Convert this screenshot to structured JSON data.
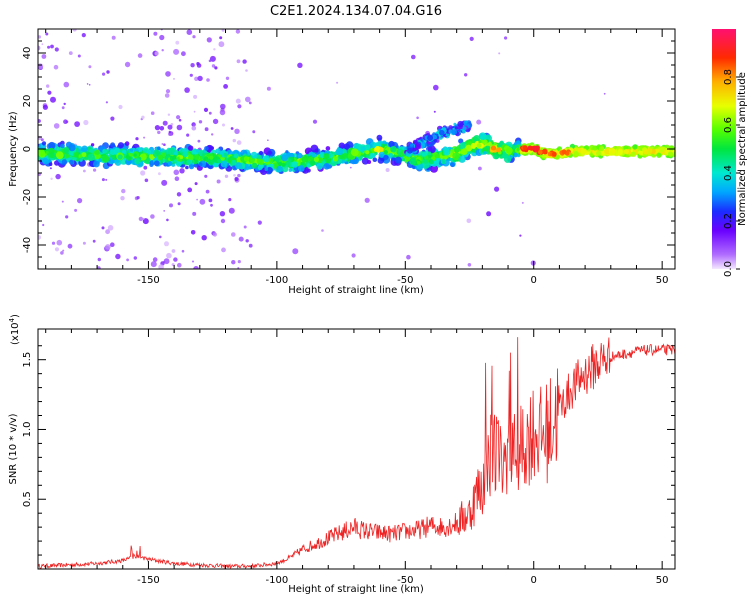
{
  "title": "C2E1.2024.134.07.04.G16",
  "colorbar": {
    "label": "Normalized spectral amplitude",
    "ticks": [
      "0.0",
      "0.2",
      "0.4",
      "0.6",
      "0.8"
    ]
  },
  "chart_data": [
    {
      "type": "heatmap",
      "xlabel": "Height of straight line (km)",
      "ylabel": "Frequency (Hz)",
      "xlim": [
        -193,
        55
      ],
      "ylim": [
        -50,
        50
      ],
      "xticks": [
        "-150",
        "-100",
        "-50",
        "0",
        "50"
      ],
      "yticks": [
        "-40",
        "-20",
        "0",
        "20",
        "40"
      ],
      "zlim": [
        0,
        1
      ],
      "ridge": {
        "x": [
          -193,
          -150,
          -120,
          -100,
          -80,
          -70,
          -60,
          -52,
          -45,
          -40,
          -30,
          -25,
          -20,
          -15,
          -10,
          -5,
          0,
          5,
          10,
          15,
          20,
          30,
          40,
          55
        ],
        "y": [
          -2,
          -3,
          -4,
          -6,
          -4,
          -2,
          0,
          -2,
          -5,
          -4,
          -2,
          1,
          2,
          0,
          -1,
          0,
          0,
          -2,
          -2,
          -1,
          -1,
          -1,
          -1,
          -1
        ]
      },
      "branch": {
        "x": [
          -50,
          -45,
          -40,
          -35,
          -30,
          -25
        ],
        "y": [
          -1,
          2,
          4,
          7,
          8,
          10
        ]
      }
    },
    {
      "type": "line",
      "xlabel": "Height of straight line (km)",
      "ylabel": "SNR (10 * v/v)",
      "yexponent": "(x10",
      "yexponent_power": "4",
      "yexponent_close": ")",
      "xlim": [
        -193,
        55
      ],
      "ylim": [
        0,
        1.72
      ],
      "xticks": [
        "-150",
        "-100",
        "-50",
        "0",
        "50"
      ],
      "yticks": [
        "0.5",
        "1.0",
        "1.5"
      ],
      "series": [
        {
          "color": "#ee2222",
          "x": [
            -193,
            -180,
            -170,
            -160,
            -155,
            -150,
            -140,
            -130,
            -120,
            -110,
            -100,
            -95,
            -90,
            -85,
            -80,
            -75,
            -70,
            -65,
            -60,
            -55,
            -50,
            -45,
            -40,
            -35,
            -30,
            -25,
            -22,
            -20,
            -18,
            -15,
            -12,
            -10,
            -8,
            -5,
            -2,
            0,
            3,
            6,
            10,
            15,
            20,
            25,
            30,
            35,
            40,
            45,
            50,
            55
          ],
          "y": [
            0.02,
            0.03,
            0.04,
            0.06,
            0.09,
            0.07,
            0.04,
            0.03,
            0.02,
            0.02,
            0.04,
            0.08,
            0.14,
            0.18,
            0.22,
            0.26,
            0.3,
            0.27,
            0.26,
            0.25,
            0.27,
            0.28,
            0.31,
            0.3,
            0.33,
            0.4,
            0.55,
            0.6,
            0.8,
            0.9,
            0.7,
            0.9,
            0.85,
            0.85,
            0.95,
            1.0,
            0.95,
            1.0,
            1.15,
            1.3,
            1.4,
            1.48,
            1.52,
            1.54,
            1.56,
            1.57,
            1.57,
            1.57
          ]
        }
      ]
    }
  ]
}
